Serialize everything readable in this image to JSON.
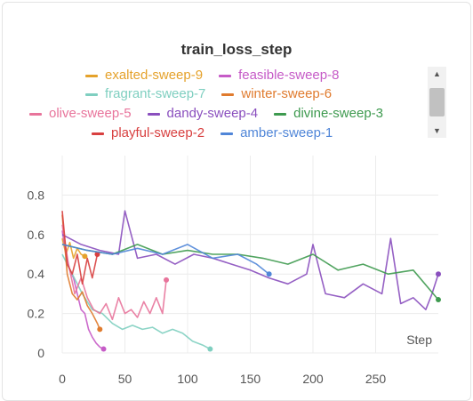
{
  "chart_data": {
    "type": "line",
    "title": "train_loss_step",
    "xlabel": "Step",
    "ylabel": "",
    "xlim": [
      0,
      300
    ],
    "ylim": [
      0,
      1.0
    ],
    "x_ticks": [
      "0",
      "50",
      "100",
      "150",
      "200",
      "250"
    ],
    "y_ticks": [
      "0",
      "0.2",
      "0.4",
      "0.6",
      "0.8"
    ],
    "legend": [
      [
        "exalted-sweep-9",
        "feasible-sweep-8"
      ],
      [
        "fragrant-sweep-7",
        "winter-sweep-6"
      ],
      [
        "olive-sweep-5",
        "dandy-sweep-4",
        "divine-sweep-3"
      ],
      [
        "playful-sweep-2",
        "amber-sweep-1"
      ]
    ],
    "series": [
      {
        "name": "exalted-sweep-9",
        "color": "#e5a22b",
        "x": [
          0,
          3,
          6,
          9,
          12,
          15,
          18
        ],
        "y": [
          0.58,
          0.5,
          0.56,
          0.48,
          0.53,
          0.5,
          0.49
        ]
      },
      {
        "name": "feasible-sweep-8",
        "color": "#c65bc7",
        "x": [
          0,
          3,
          6,
          9,
          12,
          15,
          18,
          21,
          24,
          27,
          30,
          33
        ],
        "y": [
          0.62,
          0.5,
          0.42,
          0.38,
          0.3,
          0.22,
          0.2,
          0.12,
          0.08,
          0.05,
          0.03,
          0.02
        ]
      },
      {
        "name": "fragrant-sweep-7",
        "color": "#7fcfc0",
        "x": [
          0,
          8,
          16,
          24,
          32,
          40,
          48,
          56,
          64,
          72,
          80,
          88,
          96,
          104,
          112,
          118
        ],
        "y": [
          0.5,
          0.4,
          0.3,
          0.22,
          0.2,
          0.15,
          0.12,
          0.14,
          0.12,
          0.13,
          0.1,
          0.12,
          0.1,
          0.06,
          0.04,
          0.02
        ]
      },
      {
        "name": "winter-sweep-6",
        "color": "#e07b2e",
        "x": [
          0,
          4,
          8,
          12,
          16,
          20,
          24,
          28,
          30
        ],
        "y": [
          0.7,
          0.4,
          0.3,
          0.27,
          0.31,
          0.24,
          0.2,
          0.15,
          0.12
        ]
      },
      {
        "name": "olive-sweep-5",
        "color": "#e8749b",
        "x": [
          0,
          5,
          10,
          15,
          20,
          25,
          30,
          35,
          40,
          45,
          50,
          55,
          60,
          65,
          70,
          75,
          80,
          83
        ],
        "y": [
          0.65,
          0.45,
          0.3,
          0.38,
          0.28,
          0.22,
          0.2,
          0.25,
          0.17,
          0.28,
          0.2,
          0.22,
          0.18,
          0.26,
          0.2,
          0.28,
          0.2,
          0.37
        ]
      },
      {
        "name": "dandy-sweep-4",
        "color": "#8a4fbe",
        "x": [
          0,
          15,
          30,
          45,
          50,
          60,
          75,
          90,
          105,
          120,
          135,
          150,
          165,
          180,
          195,
          200,
          210,
          225,
          240,
          255,
          262,
          270,
          280,
          290,
          295,
          300
        ],
        "y": [
          0.6,
          0.55,
          0.52,
          0.5,
          0.72,
          0.48,
          0.5,
          0.45,
          0.5,
          0.48,
          0.45,
          0.42,
          0.38,
          0.35,
          0.4,
          0.55,
          0.3,
          0.28,
          0.35,
          0.3,
          0.58,
          0.25,
          0.28,
          0.22,
          0.3,
          0.4
        ]
      },
      {
        "name": "divine-sweep-3",
        "color": "#3e9a4f",
        "x": [
          0,
          20,
          40,
          60,
          80,
          100,
          120,
          140,
          160,
          180,
          200,
          220,
          240,
          260,
          280,
          300
        ],
        "y": [
          0.55,
          0.52,
          0.5,
          0.55,
          0.5,
          0.52,
          0.5,
          0.5,
          0.48,
          0.45,
          0.5,
          0.42,
          0.45,
          0.4,
          0.42,
          0.27
        ]
      },
      {
        "name": "playful-sweep-2",
        "color": "#d84040",
        "x": [
          0,
          4,
          8,
          12,
          16,
          20,
          24,
          28
        ],
        "y": [
          0.72,
          0.45,
          0.4,
          0.5,
          0.35,
          0.48,
          0.38,
          0.5
        ]
      },
      {
        "name": "amber-sweep-1",
        "color": "#5086d8",
        "x": [
          0,
          20,
          40,
          60,
          80,
          100,
          120,
          140,
          155,
          165
        ],
        "y": [
          0.55,
          0.52,
          0.5,
          0.53,
          0.5,
          0.55,
          0.48,
          0.5,
          0.45,
          0.4
        ]
      }
    ]
  }
}
